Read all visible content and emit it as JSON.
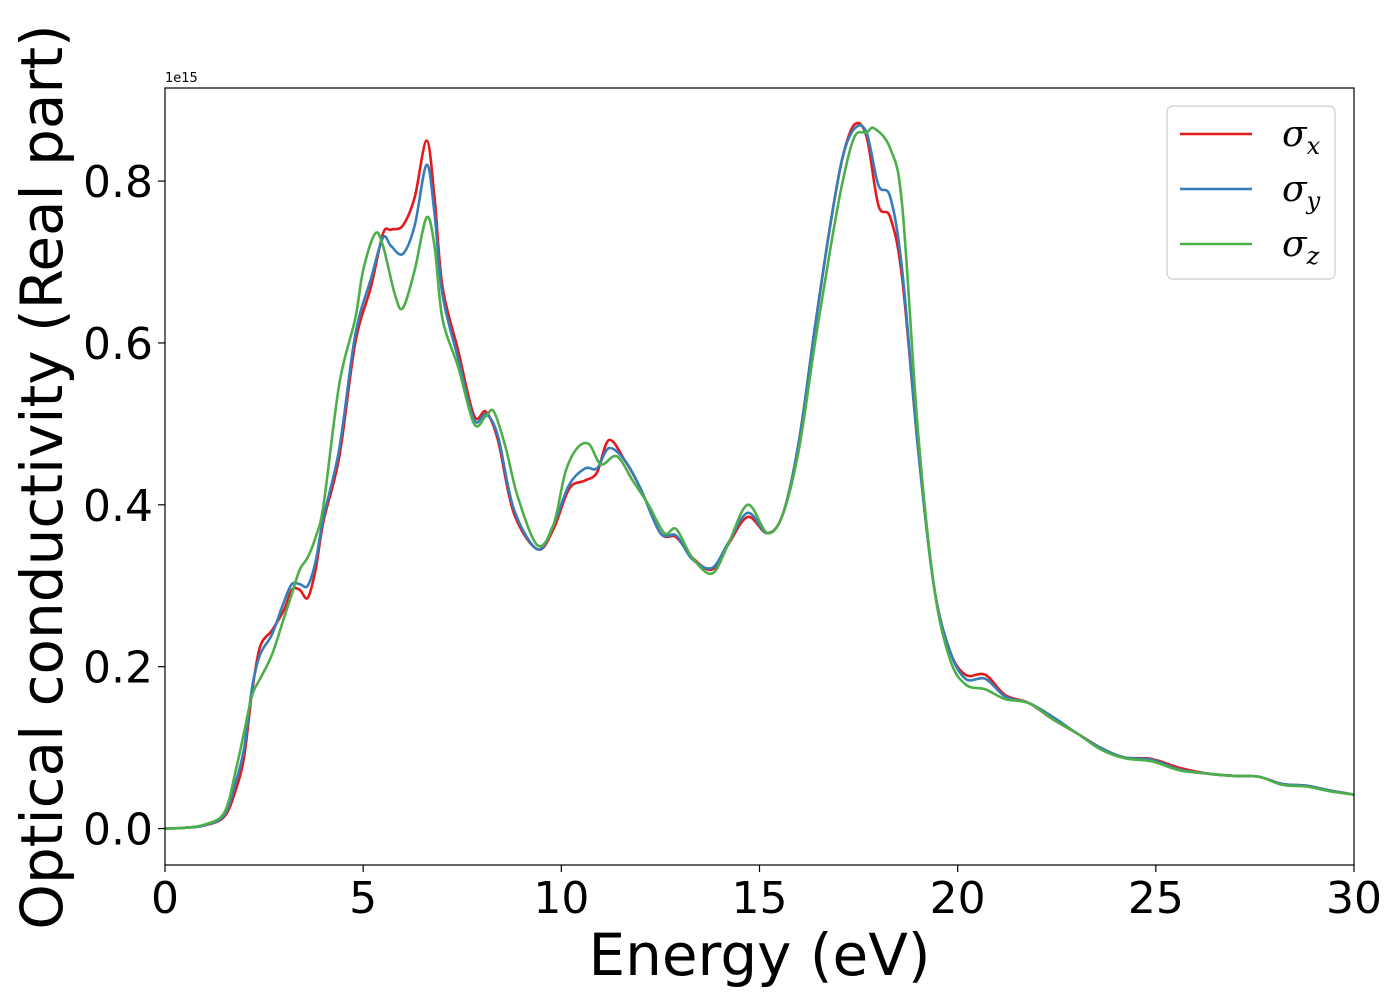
{
  "chart_data": {
    "type": "line",
    "title": "",
    "xlabel": "Energy (eV)",
    "ylabel": "Optical conductivity (Real part)",
    "y_offset_label": "1e15",
    "xlim": [
      0,
      30
    ],
    "ylim": [
      -0.045,
      0.915
    ],
    "x_ticks": [
      0,
      5,
      10,
      15,
      20,
      25,
      30
    ],
    "y_ticks": [
      0.0,
      0.2,
      0.4,
      0.6,
      0.8
    ],
    "x_tick_labels": [
      "0",
      "5",
      "10",
      "15",
      "20",
      "25",
      "30"
    ],
    "y_tick_labels": [
      "0.0",
      "0.2",
      "0.4",
      "0.6",
      "0.8"
    ],
    "grid": false,
    "legend_position": "top-right",
    "series": [
      {
        "name": "σx",
        "legend_symbol": "σ",
        "legend_subscript": "x",
        "color": "#e41a1c",
        "points": [
          [
            0,
            0.0
          ],
          [
            0.5,
            0.001
          ],
          [
            1.0,
            0.004
          ],
          [
            1.5,
            0.015
          ],
          [
            1.8,
            0.05
          ],
          [
            2.0,
            0.09
          ],
          [
            2.2,
            0.17
          ],
          [
            2.4,
            0.225
          ],
          [
            2.7,
            0.245
          ],
          [
            3.0,
            0.27
          ],
          [
            3.2,
            0.295
          ],
          [
            3.4,
            0.295
          ],
          [
            3.6,
            0.285
          ],
          [
            3.8,
            0.32
          ],
          [
            4.0,
            0.38
          ],
          [
            4.4,
            0.46
          ],
          [
            4.8,
            0.6
          ],
          [
            5.2,
            0.67
          ],
          [
            5.5,
            0.735
          ],
          [
            5.7,
            0.74
          ],
          [
            6.0,
            0.745
          ],
          [
            6.3,
            0.78
          ],
          [
            6.6,
            0.85
          ],
          [
            6.8,
            0.78
          ],
          [
            7.0,
            0.67
          ],
          [
            7.4,
            0.59
          ],
          [
            7.8,
            0.51
          ],
          [
            8.1,
            0.515
          ],
          [
            8.4,
            0.48
          ],
          [
            8.8,
            0.39
          ],
          [
            9.4,
            0.345
          ],
          [
            9.8,
            0.37
          ],
          [
            10.2,
            0.42
          ],
          [
            10.6,
            0.43
          ],
          [
            10.9,
            0.44
          ],
          [
            11.2,
            0.48
          ],
          [
            11.6,
            0.455
          ],
          [
            12.0,
            0.42
          ],
          [
            12.5,
            0.365
          ],
          [
            12.9,
            0.36
          ],
          [
            13.3,
            0.335
          ],
          [
            13.8,
            0.32
          ],
          [
            14.2,
            0.35
          ],
          [
            14.7,
            0.385
          ],
          [
            15.2,
            0.365
          ],
          [
            15.6,
            0.39
          ],
          [
            16.0,
            0.48
          ],
          [
            16.4,
            0.62
          ],
          [
            16.8,
            0.75
          ],
          [
            17.1,
            0.83
          ],
          [
            17.4,
            0.87
          ],
          [
            17.7,
            0.855
          ],
          [
            18.0,
            0.77
          ],
          [
            18.3,
            0.755
          ],
          [
            18.6,
            0.68
          ],
          [
            19.0,
            0.47
          ],
          [
            19.4,
            0.3
          ],
          [
            19.8,
            0.22
          ],
          [
            20.2,
            0.19
          ],
          [
            20.7,
            0.19
          ],
          [
            21.2,
            0.165
          ],
          [
            21.8,
            0.155
          ],
          [
            22.4,
            0.135
          ],
          [
            23.0,
            0.118
          ],
          [
            23.6,
            0.1
          ],
          [
            24.2,
            0.088
          ],
          [
            24.9,
            0.086
          ],
          [
            25.6,
            0.075
          ],
          [
            26.3,
            0.068
          ],
          [
            27.0,
            0.065
          ],
          [
            27.6,
            0.064
          ],
          [
            28.2,
            0.055
          ],
          [
            28.8,
            0.053
          ],
          [
            29.4,
            0.047
          ],
          [
            30.0,
            0.042
          ]
        ]
      },
      {
        "name": "σy",
        "legend_symbol": "σ",
        "legend_subscript": "y",
        "color": "#377eb8",
        "points": [
          [
            0,
            0.0
          ],
          [
            0.5,
            0.001
          ],
          [
            1.0,
            0.004
          ],
          [
            1.5,
            0.017
          ],
          [
            1.8,
            0.06
          ],
          [
            2.0,
            0.1
          ],
          [
            2.2,
            0.175
          ],
          [
            2.4,
            0.215
          ],
          [
            2.7,
            0.24
          ],
          [
            3.0,
            0.28
          ],
          [
            3.2,
            0.302
          ],
          [
            3.4,
            0.302
          ],
          [
            3.6,
            0.3
          ],
          [
            3.8,
            0.33
          ],
          [
            4.0,
            0.385
          ],
          [
            4.4,
            0.47
          ],
          [
            4.8,
            0.61
          ],
          [
            5.2,
            0.68
          ],
          [
            5.5,
            0.73
          ],
          [
            5.7,
            0.72
          ],
          [
            6.0,
            0.71
          ],
          [
            6.3,
            0.745
          ],
          [
            6.6,
            0.82
          ],
          [
            6.8,
            0.76
          ],
          [
            7.0,
            0.66
          ],
          [
            7.4,
            0.58
          ],
          [
            7.8,
            0.505
          ],
          [
            8.1,
            0.512
          ],
          [
            8.4,
            0.485
          ],
          [
            8.8,
            0.395
          ],
          [
            9.4,
            0.345
          ],
          [
            9.8,
            0.375
          ],
          [
            10.2,
            0.425
          ],
          [
            10.6,
            0.445
          ],
          [
            10.9,
            0.445
          ],
          [
            11.2,
            0.47
          ],
          [
            11.6,
            0.455
          ],
          [
            12.0,
            0.42
          ],
          [
            12.5,
            0.365
          ],
          [
            12.9,
            0.362
          ],
          [
            13.3,
            0.333
          ],
          [
            13.8,
            0.322
          ],
          [
            14.2,
            0.352
          ],
          [
            14.7,
            0.39
          ],
          [
            15.2,
            0.365
          ],
          [
            15.6,
            0.39
          ],
          [
            16.0,
            0.48
          ],
          [
            16.4,
            0.62
          ],
          [
            16.8,
            0.75
          ],
          [
            17.1,
            0.83
          ],
          [
            17.4,
            0.865
          ],
          [
            17.7,
            0.86
          ],
          [
            18.0,
            0.795
          ],
          [
            18.3,
            0.78
          ],
          [
            18.6,
            0.69
          ],
          [
            19.0,
            0.47
          ],
          [
            19.4,
            0.3
          ],
          [
            19.8,
            0.22
          ],
          [
            20.2,
            0.185
          ],
          [
            20.7,
            0.185
          ],
          [
            21.2,
            0.163
          ],
          [
            21.8,
            0.155
          ],
          [
            22.4,
            0.138
          ],
          [
            23.0,
            0.118
          ],
          [
            23.6,
            0.1
          ],
          [
            24.2,
            0.088
          ],
          [
            24.9,
            0.085
          ],
          [
            25.6,
            0.073
          ],
          [
            26.3,
            0.068
          ],
          [
            27.0,
            0.065
          ],
          [
            27.6,
            0.064
          ],
          [
            28.2,
            0.055
          ],
          [
            28.8,
            0.053
          ],
          [
            29.4,
            0.047
          ],
          [
            30.0,
            0.042
          ]
        ]
      },
      {
        "name": "σz",
        "legend_symbol": "σ",
        "legend_subscript": "z",
        "color": "#4daf4a",
        "points": [
          [
            0,
            0.0
          ],
          [
            0.5,
            0.001
          ],
          [
            1.0,
            0.005
          ],
          [
            1.5,
            0.02
          ],
          [
            1.8,
            0.075
          ],
          [
            2.0,
            0.12
          ],
          [
            2.2,
            0.165
          ],
          [
            2.4,
            0.185
          ],
          [
            2.7,
            0.215
          ],
          [
            3.0,
            0.26
          ],
          [
            3.2,
            0.29
          ],
          [
            3.4,
            0.32
          ],
          [
            3.6,
            0.335
          ],
          [
            3.8,
            0.36
          ],
          [
            4.0,
            0.4
          ],
          [
            4.4,
            0.55
          ],
          [
            4.8,
            0.63
          ],
          [
            5.0,
            0.69
          ],
          [
            5.3,
            0.735
          ],
          [
            5.5,
            0.72
          ],
          [
            5.8,
            0.66
          ],
          [
            6.0,
            0.643
          ],
          [
            6.3,
            0.69
          ],
          [
            6.6,
            0.755
          ],
          [
            6.8,
            0.72
          ],
          [
            7.0,
            0.63
          ],
          [
            7.4,
            0.57
          ],
          [
            7.8,
            0.5
          ],
          [
            8.1,
            0.51
          ],
          [
            8.3,
            0.515
          ],
          [
            8.6,
            0.47
          ],
          [
            8.9,
            0.41
          ],
          [
            9.4,
            0.35
          ],
          [
            9.8,
            0.375
          ],
          [
            10.1,
            0.44
          ],
          [
            10.4,
            0.47
          ],
          [
            10.7,
            0.475
          ],
          [
            11.0,
            0.45
          ],
          [
            11.4,
            0.46
          ],
          [
            11.8,
            0.43
          ],
          [
            12.2,
            0.4
          ],
          [
            12.6,
            0.365
          ],
          [
            12.9,
            0.37
          ],
          [
            13.3,
            0.335
          ],
          [
            13.8,
            0.315
          ],
          [
            14.2,
            0.35
          ],
          [
            14.7,
            0.4
          ],
          [
            15.2,
            0.365
          ],
          [
            15.6,
            0.39
          ],
          [
            16.0,
            0.47
          ],
          [
            16.4,
            0.6
          ],
          [
            16.8,
            0.72
          ],
          [
            17.1,
            0.8
          ],
          [
            17.4,
            0.855
          ],
          [
            17.7,
            0.86
          ],
          [
            17.9,
            0.865
          ],
          [
            18.3,
            0.84
          ],
          [
            18.6,
            0.77
          ],
          [
            19.0,
            0.49
          ],
          [
            19.4,
            0.3
          ],
          [
            19.8,
            0.21
          ],
          [
            20.2,
            0.178
          ],
          [
            20.7,
            0.172
          ],
          [
            21.2,
            0.16
          ],
          [
            21.8,
            0.155
          ],
          [
            22.4,
            0.135
          ],
          [
            23.0,
            0.118
          ],
          [
            23.6,
            0.098
          ],
          [
            24.2,
            0.087
          ],
          [
            24.9,
            0.083
          ],
          [
            25.6,
            0.072
          ],
          [
            26.3,
            0.068
          ],
          [
            27.0,
            0.065
          ],
          [
            27.6,
            0.064
          ],
          [
            28.2,
            0.054
          ],
          [
            28.8,
            0.052
          ],
          [
            29.4,
            0.046
          ],
          [
            30.0,
            0.042
          ]
        ]
      }
    ]
  }
}
